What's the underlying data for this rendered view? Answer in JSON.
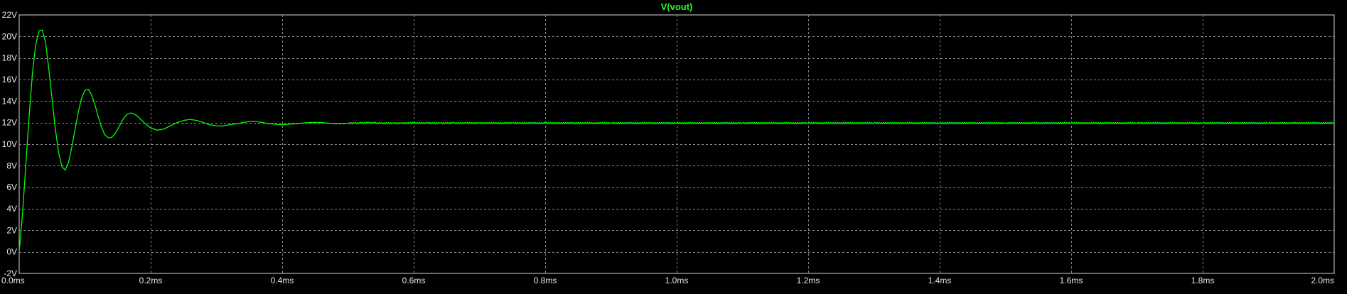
{
  "chart_data": {
    "type": "line",
    "title": "V(vout)",
    "xlabel": "",
    "ylabel": "",
    "xlim": [
      0,
      2.0
    ],
    "ylim": [
      -2,
      22
    ],
    "grid": true,
    "x_ticks": [
      {
        "value": 0.0,
        "label": "0.0ms"
      },
      {
        "value": 0.2,
        "label": "0.2ms"
      },
      {
        "value": 0.4,
        "label": "0.4ms"
      },
      {
        "value": 0.6,
        "label": "0.6ms"
      },
      {
        "value": 0.8,
        "label": "0.8ms"
      },
      {
        "value": 1.0,
        "label": "1.0ms"
      },
      {
        "value": 1.2,
        "label": "1.2ms"
      },
      {
        "value": 1.4,
        "label": "1.4ms"
      },
      {
        "value": 1.6,
        "label": "1.6ms"
      },
      {
        "value": 1.8,
        "label": "1.8ms"
      },
      {
        "value": 2.0,
        "label": "2.0ms"
      }
    ],
    "y_ticks": [
      {
        "value": -2,
        "label": "-2V"
      },
      {
        "value": 0,
        "label": "0V"
      },
      {
        "value": 2,
        "label": "2V"
      },
      {
        "value": 4,
        "label": "4V"
      },
      {
        "value": 6,
        "label": "6V"
      },
      {
        "value": 8,
        "label": "8V"
      },
      {
        "value": 10,
        "label": "10V"
      },
      {
        "value": 12,
        "label": "12V"
      },
      {
        "value": 14,
        "label": "14V"
      },
      {
        "value": 16,
        "label": "16V"
      },
      {
        "value": 18,
        "label": "18V"
      },
      {
        "value": 20,
        "label": "20V"
      },
      {
        "value": 22,
        "label": "22V"
      }
    ],
    "series": [
      {
        "name": "V(vout)",
        "color": "#00ff00",
        "x": [
          0.0,
          0.005,
          0.01,
          0.015,
          0.02,
          0.025,
          0.03,
          0.035,
          0.04,
          0.045,
          0.05,
          0.055,
          0.06,
          0.065,
          0.07,
          0.075,
          0.08,
          0.085,
          0.09,
          0.095,
          0.1,
          0.105,
          0.11,
          0.115,
          0.12,
          0.125,
          0.13,
          0.135,
          0.14,
          0.145,
          0.15,
          0.155,
          0.16,
          0.165,
          0.17,
          0.175,
          0.18,
          0.185,
          0.19,
          0.2,
          0.21,
          0.22,
          0.23,
          0.24,
          0.25,
          0.26,
          0.27,
          0.28,
          0.29,
          0.3,
          0.31,
          0.32,
          0.33,
          0.34,
          0.35,
          0.36,
          0.37,
          0.38,
          0.39,
          0.4,
          0.41,
          0.42,
          0.43,
          0.44,
          0.45,
          0.46,
          0.47,
          0.48,
          0.49,
          0.5,
          0.51,
          0.52,
          0.53,
          0.54,
          0.55,
          0.56,
          0.57,
          0.58,
          0.6,
          0.62,
          0.64,
          0.66,
          0.68,
          0.7,
          0.75,
          0.8,
          0.9,
          1.0,
          1.1,
          1.2,
          1.3,
          1.4,
          1.5,
          1.6,
          1.7,
          1.8,
          1.9,
          2.0
        ],
        "y": [
          0.0,
          3.5,
          8.0,
          12.5,
          16.5,
          19.2,
          20.5,
          20.6,
          19.5,
          17.0,
          14.2,
          11.4,
          9.2,
          7.9,
          7.6,
          8.3,
          9.7,
          11.4,
          13.0,
          14.3,
          15.0,
          15.1,
          14.6,
          13.7,
          12.6,
          11.6,
          10.9,
          10.6,
          10.6,
          10.9,
          11.4,
          12.0,
          12.5,
          12.8,
          12.9,
          12.8,
          12.6,
          12.3,
          12.0,
          11.5,
          11.3,
          11.4,
          11.7,
          12.0,
          12.2,
          12.3,
          12.2,
          12.0,
          11.8,
          11.7,
          11.7,
          11.8,
          11.9,
          12.0,
          12.1,
          12.1,
          12.0,
          11.9,
          11.85,
          11.8,
          11.85,
          11.9,
          11.95,
          12.0,
          12.02,
          12.0,
          11.95,
          11.9,
          11.9,
          11.92,
          11.95,
          11.97,
          11.98,
          11.97,
          11.95,
          11.94,
          11.94,
          11.95,
          11.97,
          11.96,
          11.95,
          11.96,
          11.96,
          11.96,
          11.96,
          11.96,
          11.96,
          11.96,
          11.96,
          11.96,
          11.96,
          11.96,
          11.96,
          11.96,
          11.96,
          11.96,
          11.96,
          11.96
        ]
      }
    ]
  }
}
